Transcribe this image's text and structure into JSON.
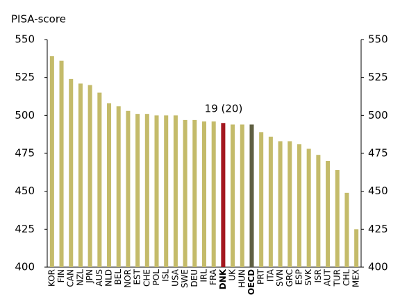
{
  "chart_data": {
    "type": "bar",
    "y_label": "PISA-score",
    "annotation": "19 (20)",
    "categories": [
      "KOR",
      "FIN",
      "CAN",
      "NZL",
      "JPN",
      "AUS",
      "NLD",
      "BEL",
      "NOR",
      "EST",
      "CHE",
      "POL",
      "ISL",
      "USA",
      "SWE",
      "DEU",
      "IRL",
      "FRA",
      "DNK",
      "UK",
      "HUN",
      "OECD",
      "PRT",
      "ITA",
      "SVN",
      "GRC",
      "ESP",
      "SVK",
      "ISR",
      "AUT",
      "TUR",
      "CHL",
      "MEX"
    ],
    "values": [
      539,
      536,
      524,
      521,
      520,
      515,
      508,
      506,
      503,
      501,
      501,
      500,
      500,
      500,
      497,
      497,
      496,
      496,
      495,
      494,
      494,
      494,
      489,
      486,
      483,
      483,
      481,
      478,
      474,
      470,
      464,
      449,
      425
    ],
    "color": "#c4bb6a",
    "highlights": [
      {
        "index": 18,
        "color": "#a3161e"
      },
      {
        "index": 21,
        "color": "#5f5f42"
      }
    ],
    "ylim": [
      400,
      550
    ],
    "yticks": [
      400,
      425,
      450,
      475,
      500,
      525,
      550
    ],
    "y2lim": [
      400,
      550
    ],
    "y2ticks": [
      400,
      425,
      450,
      475,
      500,
      525,
      550
    ]
  }
}
